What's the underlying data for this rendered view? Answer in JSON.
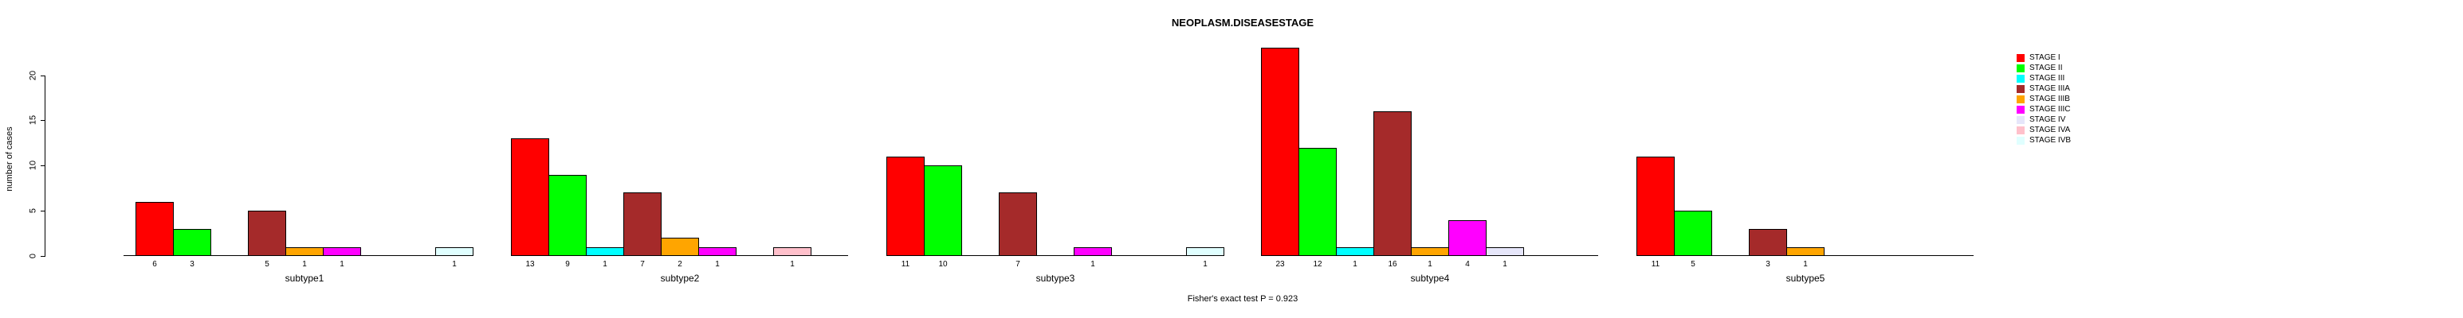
{
  "chart_data": {
    "type": "bar",
    "title": "NEOPLASM.DISEASESTAGE",
    "ylabel": "number of cases",
    "xlabel": "",
    "ylim": [
      0,
      20
    ],
    "yticks": [
      0,
      5,
      10,
      15,
      20
    ],
    "grid": false,
    "legend_position": "top-right",
    "annotation": "Fisher's exact test P = 0.923",
    "bar_value_labels": "shown under each nonzero bar",
    "categories": [
      "subtype1",
      "subtype2",
      "subtype3",
      "subtype4",
      "subtype5"
    ],
    "series": [
      {
        "name": "STAGE I",
        "color": "#FF0000",
        "values": [
          6,
          13,
          11,
          23,
          11
        ]
      },
      {
        "name": "STAGE II",
        "color": "#00FF00",
        "values": [
          3,
          9,
          10,
          12,
          5
        ]
      },
      {
        "name": "STAGE III",
        "color": "#00FFFF",
        "values": [
          0,
          1,
          0,
          1,
          0
        ]
      },
      {
        "name": "STAGE IIIA",
        "color": "#A52A2A",
        "values": [
          5,
          7,
          7,
          16,
          3
        ]
      },
      {
        "name": "STAGE IIIB",
        "color": "#FFA500",
        "values": [
          1,
          2,
          0,
          1,
          1
        ]
      },
      {
        "name": "STAGE IIIC",
        "color": "#FF00FF",
        "values": [
          1,
          1,
          1,
          4,
          0
        ]
      },
      {
        "name": "STAGE IV",
        "color": "#E6E6FA",
        "values": [
          0,
          0,
          0,
          1,
          0
        ]
      },
      {
        "name": "STAGE IVA",
        "color": "#FFC0CB",
        "values": [
          0,
          1,
          0,
          0,
          0
        ]
      },
      {
        "name": "STAGE IVB",
        "color": "#E0FFFF",
        "values": [
          1,
          0,
          1,
          0,
          0
        ]
      }
    ]
  }
}
